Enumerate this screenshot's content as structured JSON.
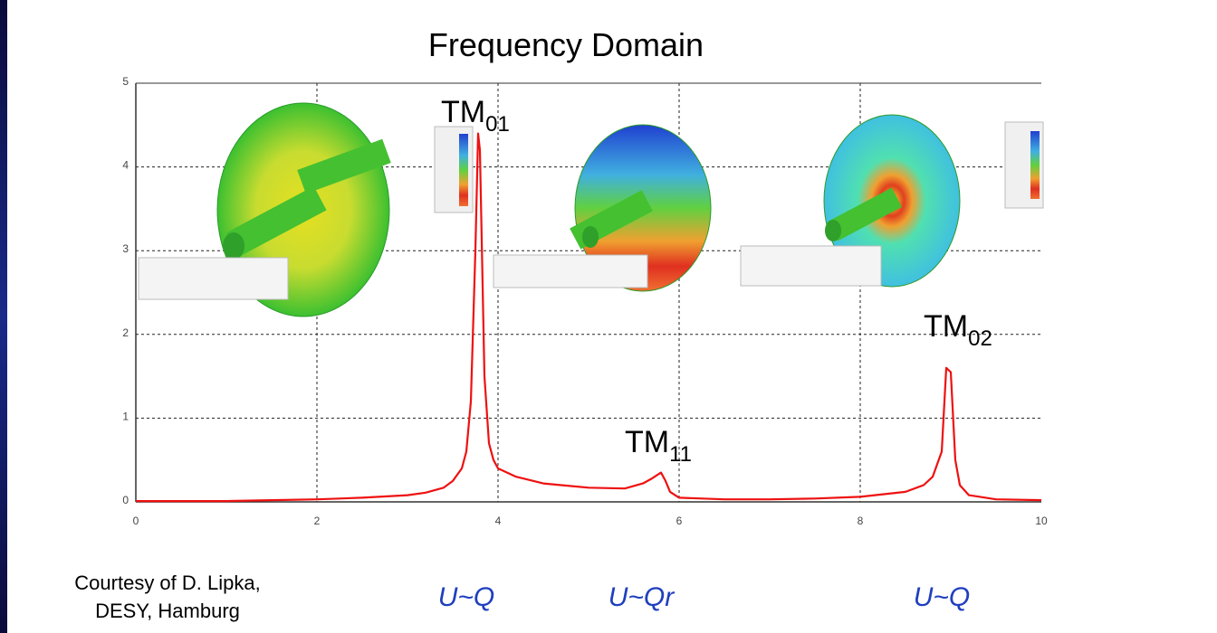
{
  "chart_data": {
    "type": "line",
    "title": "Frequency Domain",
    "x": [
      0,
      0.5,
      1,
      1.5,
      2,
      2.5,
      3,
      3.2,
      3.4,
      3.5,
      3.6,
      3.65,
      3.7,
      3.75,
      3.78,
      3.8,
      3.85,
      3.9,
      3.95,
      4,
      4.2,
      4.5,
      5,
      5.4,
      5.6,
      5.7,
      5.8,
      5.85,
      5.9,
      6,
      6.5,
      7,
      7.5,
      8,
      8.5,
      8.7,
      8.8,
      8.9,
      8.95,
      9.0,
      9.05,
      9.1,
      9.2,
      9.5,
      10
    ],
    "series": [
      {
        "color": "#ee1111",
        "values": [
          0.01,
          0.01,
          0.01,
          0.02,
          0.03,
          0.05,
          0.08,
          0.11,
          0.17,
          0.25,
          0.4,
          0.6,
          1.2,
          3.0,
          4.4,
          4.2,
          1.5,
          0.7,
          0.5,
          0.4,
          0.3,
          0.22,
          0.17,
          0.16,
          0.22,
          0.28,
          0.35,
          0.25,
          0.12,
          0.05,
          0.03,
          0.03,
          0.04,
          0.06,
          0.12,
          0.2,
          0.3,
          0.6,
          1.6,
          1.55,
          0.5,
          0.2,
          0.08,
          0.03,
          0.02
        ]
      }
    ],
    "xlim": [
      0,
      10
    ],
    "xticks": [
      0,
      2,
      4,
      6,
      8,
      10
    ],
    "ylim": [
      0,
      5
    ],
    "yticks": [
      0,
      1,
      2,
      3,
      4,
      5
    ],
    "grid": true,
    "annotations": [
      {
        "text": "TM",
        "sub": "01"
      },
      {
        "text": "TM",
        "sub": "11"
      },
      {
        "text": "TM",
        "sub": "02"
      }
    ]
  },
  "footer": {
    "credit": [
      "Courtesy of D. Lipka,",
      "DESY, Hamburg"
    ],
    "labels": [
      "U~Q",
      "U~Qr",
      "U~Q"
    ]
  }
}
